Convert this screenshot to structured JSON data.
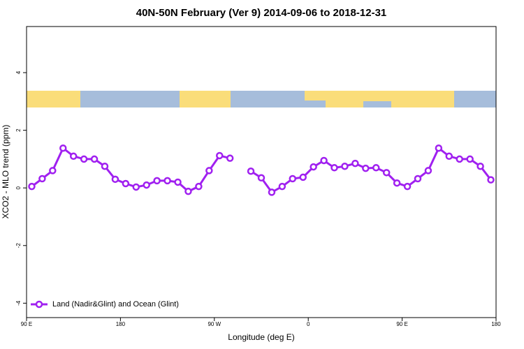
{
  "chart_data": {
    "type": "line",
    "title": "40N-50N February (Ver 9)   2014-09-06 to 2018-12-31",
    "xlabel": "Longitude (deg E)",
    "ylabel": "XCO2 - MLO trend (ppm)",
    "x": [
      95,
      105,
      115,
      125,
      135,
      145,
      155,
      165,
      175,
      185,
      195,
      205,
      215,
      225,
      235,
      245,
      255,
      265,
      275,
      285,
      295,
      305,
      315,
      325,
      335,
      345,
      355,
      365,
      375,
      385,
      395,
      405,
      415,
      425,
      435,
      445,
      455,
      465,
      475,
      485,
      495,
      505,
      515,
      525,
      535
    ],
    "series": [
      {
        "name": "Land (Nadir&Glint) and Ocean (Glint)",
        "color": "#a020f0",
        "values": [
          0.05,
          0.32,
          0.6,
          1.38,
          1.1,
          1.0,
          1.0,
          0.75,
          0.3,
          0.15,
          0.03,
          0.1,
          0.25,
          0.25,
          0.2,
          -0.12,
          0.05,
          0.6,
          1.12,
          1.03,
          null,
          0.58,
          0.35,
          -0.15,
          0.05,
          0.32,
          0.37,
          0.73,
          0.95,
          0.7,
          0.75,
          0.85,
          0.68,
          0.7,
          0.53,
          0.17,
          0.05,
          0.32,
          0.6,
          1.38,
          1.1,
          1.0,
          1.0,
          0.75,
          0.28
        ]
      }
    ],
    "xlim": [
      90,
      540
    ],
    "xticks": [
      {
        "value": 90,
        "label": "90 E"
      },
      180,
      {
        "value": 270,
        "label": "90 W"
      },
      {
        "value": 360,
        "label": "0"
      },
      {
        "value": 450,
        "label": "90 E"
      },
      {
        "value": 540,
        "label": "180"
      }
    ],
    "ylim": [
      -4.5,
      5.6
    ],
    "yticks": [
      4,
      2,
      0,
      -2,
      -4
    ],
    "legend": "bottom-left"
  }
}
